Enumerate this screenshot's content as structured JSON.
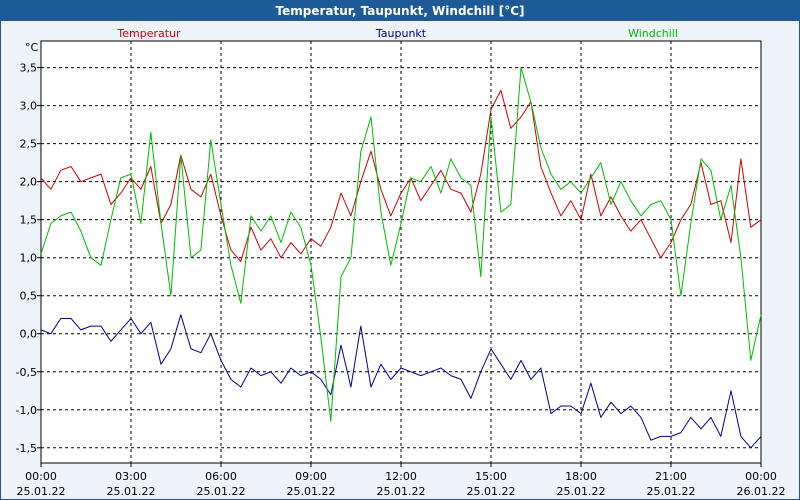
{
  "chart_data": {
    "type": "line",
    "title": "Temperatur, Taupunkt, Windchill [°C]",
    "ylabel": "°C",
    "xlabel": "",
    "ylim": [
      -1.7,
      3.85
    ],
    "xlim": [
      0,
      24
    ],
    "yticks": [
      -1.5,
      -1.0,
      -0.5,
      0.0,
      0.5,
      1.0,
      1.5,
      2.0,
      2.5,
      3.0,
      3.5
    ],
    "ytick_labels": [
      "-1,5",
      "-1,0",
      "-0,5",
      "0,0",
      "0,5",
      "1,0",
      "1,5",
      "2,0",
      "2,5",
      "3,0",
      "3,5"
    ],
    "xticks": [
      0,
      3,
      6,
      9,
      12,
      15,
      18,
      21,
      24
    ],
    "xtick_time": [
      "00:00",
      "03:00",
      "06:00",
      "09:00",
      "12:00",
      "15:00",
      "18:00",
      "21:00",
      "00:00"
    ],
    "xtick_date": [
      "25.01.22",
      "25.01.22",
      "25.01.22",
      "25.01.22",
      "25.01.22",
      "25.01.22",
      "25.01.22",
      "25.01.22",
      "26.01.22"
    ],
    "grid": true,
    "legend_position": "top",
    "series": [
      {
        "name": "Temperatur",
        "color": "#cc0000",
        "x": [
          0,
          0.33,
          0.66,
          1,
          1.33,
          1.66,
          2,
          2.33,
          2.66,
          3,
          3.33,
          3.66,
          4,
          4.33,
          4.66,
          5,
          5.33,
          5.66,
          6,
          6.33,
          6.66,
          7,
          7.33,
          7.66,
          8,
          8.33,
          8.66,
          9,
          9.33,
          9.66,
          10,
          10.33,
          10.66,
          11,
          11.33,
          11.66,
          12,
          12.33,
          12.66,
          13,
          13.33,
          13.66,
          14,
          14.33,
          14.66,
          15,
          15.33,
          15.66,
          16,
          16.33,
          16.66,
          17,
          17.33,
          17.66,
          18,
          18.33,
          18.66,
          19,
          19.33,
          19.66,
          20,
          20.33,
          20.66,
          21,
          21.33,
          21.66,
          22,
          22.33,
          22.66,
          23,
          23.33,
          23.66,
          24
        ],
        "y": [
          2.05,
          1.9,
          2.15,
          2.2,
          2.0,
          2.05,
          2.1,
          1.7,
          1.85,
          2.05,
          1.9,
          2.2,
          1.45,
          1.7,
          2.35,
          1.9,
          1.8,
          2.1,
          1.55,
          1.1,
          0.95,
          1.4,
          1.1,
          1.25,
          1.0,
          1.2,
          1.05,
          1.25,
          1.15,
          1.4,
          1.85,
          1.55,
          2.0,
          2.4,
          1.9,
          1.55,
          1.85,
          2.05,
          1.75,
          1.95,
          2.15,
          1.9,
          1.85,
          1.6,
          2.1,
          2.95,
          3.2,
          2.7,
          2.85,
          3.05,
          2.2,
          1.85,
          1.55,
          1.75,
          1.5,
          2.1,
          1.55,
          1.8,
          1.55,
          1.35,
          1.5,
          1.25,
          1.0,
          1.2,
          1.5,
          1.7,
          2.25,
          1.7,
          1.75,
          1.2,
          2.3,
          1.4,
          1.5
        ]
      },
      {
        "name": "Taupunkt",
        "color": "#00008b",
        "x": [
          0,
          0.33,
          0.66,
          1,
          1.33,
          1.66,
          2,
          2.33,
          2.66,
          3,
          3.33,
          3.66,
          4,
          4.33,
          4.66,
          5,
          5.33,
          5.66,
          6,
          6.33,
          6.66,
          7,
          7.33,
          7.66,
          8,
          8.33,
          8.66,
          9,
          9.33,
          9.66,
          10,
          10.33,
          10.66,
          11,
          11.33,
          11.66,
          12,
          12.33,
          12.66,
          13,
          13.33,
          13.66,
          14,
          14.33,
          14.66,
          15,
          15.33,
          15.66,
          16,
          16.33,
          16.66,
          17,
          17.33,
          17.66,
          18,
          18.33,
          18.66,
          19,
          19.33,
          19.66,
          20,
          20.33,
          20.66,
          21,
          21.33,
          21.66,
          22,
          22.33,
          22.66,
          23,
          23.33,
          23.66,
          24
        ],
        "y": [
          0.05,
          0.0,
          0.2,
          0.2,
          0.05,
          0.1,
          0.1,
          -0.1,
          0.05,
          0.2,
          0.0,
          0.15,
          -0.4,
          -0.2,
          0.25,
          -0.2,
          -0.25,
          0.0,
          -0.35,
          -0.6,
          -0.7,
          -0.45,
          -0.55,
          -0.5,
          -0.65,
          -0.45,
          -0.55,
          -0.5,
          -0.6,
          -0.8,
          -0.15,
          -0.7,
          0.1,
          -0.7,
          -0.4,
          -0.6,
          -0.45,
          -0.5,
          -0.55,
          -0.5,
          -0.45,
          -0.55,
          -0.6,
          -0.85,
          -0.5,
          -0.2,
          -0.4,
          -0.6,
          -0.35,
          -0.6,
          -0.45,
          -1.05,
          -0.95,
          -0.95,
          -1.05,
          -0.65,
          -1.1,
          -0.9,
          -1.05,
          -0.95,
          -1.1,
          -1.4,
          -1.35,
          -1.35,
          -1.3,
          -1.1,
          -1.25,
          -1.1,
          -1.35,
          -0.75,
          -1.35,
          -1.5,
          -1.35
        ]
      },
      {
        "name": "Windchill",
        "color": "#00bb00",
        "x": [
          0,
          0.33,
          0.66,
          1,
          1.33,
          1.66,
          2,
          2.33,
          2.66,
          3,
          3.33,
          3.66,
          4,
          4.33,
          4.66,
          5,
          5.33,
          5.66,
          6,
          6.33,
          6.66,
          7,
          7.33,
          7.66,
          8,
          8.33,
          8.66,
          9,
          9.33,
          9.66,
          10,
          10.33,
          10.66,
          11,
          11.33,
          11.66,
          12,
          12.33,
          12.66,
          13,
          13.33,
          13.66,
          14,
          14.33,
          14.66,
          15,
          15.33,
          15.66,
          16,
          16.33,
          16.66,
          17,
          17.33,
          17.66,
          18,
          18.33,
          18.66,
          19,
          19.33,
          19.66,
          20,
          20.33,
          20.66,
          21,
          21.33,
          21.66,
          22,
          22.33,
          22.66,
          23,
          23.33,
          23.66,
          24
        ],
        "y": [
          1.05,
          1.45,
          1.55,
          1.6,
          1.35,
          1.0,
          0.9,
          1.5,
          2.05,
          2.1,
          1.45,
          2.65,
          1.45,
          0.5,
          2.35,
          1.0,
          1.1,
          2.55,
          1.7,
          0.9,
          0.4,
          1.55,
          1.35,
          1.55,
          1.2,
          1.6,
          1.4,
          0.9,
          -0.05,
          -1.15,
          0.75,
          1.0,
          2.4,
          2.85,
          1.6,
          0.9,
          1.45,
          2.05,
          2.0,
          2.2,
          1.85,
          2.3,
          2.05,
          1.95,
          0.75,
          2.85,
          1.6,
          1.7,
          3.5,
          3.05,
          2.45,
          2.1,
          1.9,
          2.0,
          1.85,
          2.05,
          2.25,
          1.7,
          2.0,
          1.75,
          1.55,
          1.7,
          1.75,
          1.5,
          0.5,
          1.45,
          2.3,
          2.15,
          1.5,
          1.95,
          1.0,
          -0.35,
          0.25
        ]
      }
    ]
  }
}
